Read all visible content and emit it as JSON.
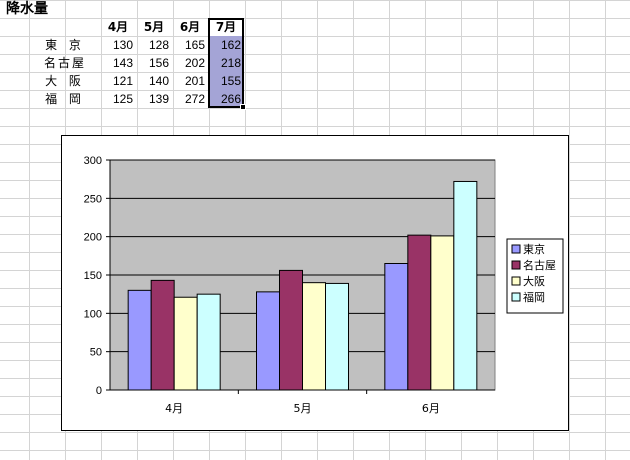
{
  "sheet": {
    "title": "降水量",
    "headers": [
      "4月",
      "5月",
      "6月",
      "7月"
    ],
    "rows": [
      {
        "city": "東 京",
        "values": [
          "130",
          "128",
          "165",
          "162"
        ]
      },
      {
        "city": "名古屋",
        "values": [
          "143",
          "156",
          "202",
          "218"
        ]
      },
      {
        "city": "大 阪",
        "values": [
          "121",
          "140",
          "201",
          "155"
        ]
      },
      {
        "city": "福 岡",
        "values": [
          "125",
          "139",
          "272",
          "266"
        ]
      }
    ],
    "selection_color": "#a4a4d6"
  },
  "chart_data": {
    "type": "bar",
    "categories": [
      "4月",
      "5月",
      "6月"
    ],
    "series": [
      {
        "name": "東京",
        "values": [
          130,
          128,
          165
        ],
        "color": "#9999ff"
      },
      {
        "name": "名古屋",
        "values": [
          143,
          156,
          202
        ],
        "color": "#993366"
      },
      {
        "name": "大阪",
        "values": [
          121,
          140,
          201
        ],
        "color": "#ffffcc"
      },
      {
        "name": "福岡",
        "values": [
          125,
          139,
          272
        ],
        "color": "#ccffff"
      }
    ],
    "yticks": [
      "0",
      "50",
      "100",
      "150",
      "200",
      "250",
      "300"
    ],
    "ylim": [
      0,
      300
    ],
    "plot_background": "#c0c0c0",
    "grid": true,
    "legend": "right",
    "title": "",
    "xlabel": "",
    "ylabel": ""
  }
}
